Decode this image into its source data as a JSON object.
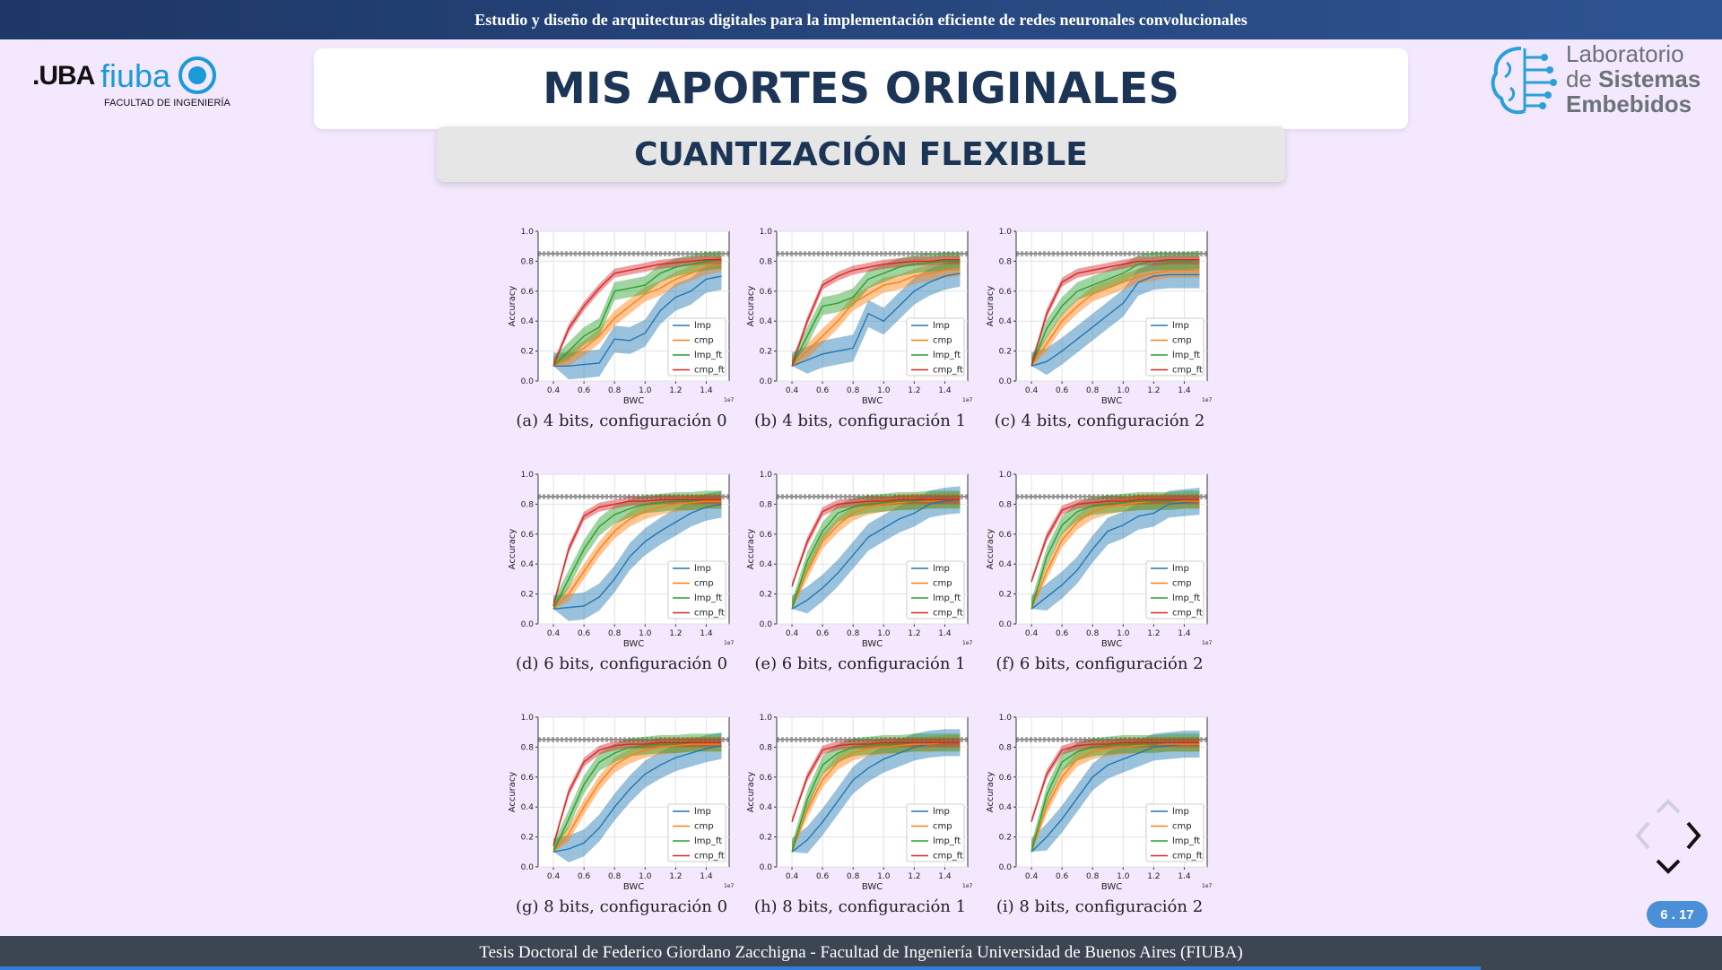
{
  "header": {
    "text": "Estudio y diseño de arquitecturas digitales para la implementación eficiente de redes neuronales convolucionales"
  },
  "footer": {
    "text": "Tesis Doctoral de Federico Giordano Zacchigna - Facultad de Ingeniería Universidad de Buenos Aires (FIUBA)"
  },
  "logo_left": {
    "uba": ".UBA",
    "fiuba": "fiuba",
    "faculty": "FACULTAD DE INGENIERÍA"
  },
  "logo_right": {
    "line1": "Laboratorio",
    "line2_prefix": "de ",
    "line2_bold": "Sistemas",
    "line3": "Embebidos"
  },
  "title": "MIS APORTES ORIGINALES",
  "subtitle": "CUANTIZACIÓN FLEXIBLE",
  "pagination": {
    "current": "6",
    "separator": ".",
    "sub": "17"
  },
  "progress_fraction": 0.86,
  "colors": {
    "lmp": "#1f77b4",
    "cmp": "#ff7f0e",
    "lmp_ft": "#2ca02c",
    "cmp_ft": "#d62728",
    "accent": "#2e5492"
  },
  "chart_data": [
    {
      "type": "line",
      "caption": "(a) 4 bits, configuración 0",
      "xlabel": "BWC",
      "ylabel": "Accuracy",
      "x_multiplier": "1e7",
      "xlim": [
        0.3,
        1.55
      ],
      "ylim": [
        0,
        1.0
      ],
      "x_ticks": [
        "0.4",
        "0.6",
        "0.8",
        "1.0",
        "1.2",
        "1.4"
      ],
      "y_ticks": [
        "0.0",
        "0.2",
        "0.4",
        "0.6",
        "0.8",
        "1.0"
      ],
      "reference_line": 0.85,
      "legend": [
        "lmp",
        "cmp",
        "lmp_ft",
        "cmp_ft"
      ],
      "legend_position": "lower-right",
      "x": [
        0.4,
        0.5,
        0.6,
        0.7,
        0.8,
        0.9,
        1.0,
        1.1,
        1.2,
        1.3,
        1.4,
        1.5
      ],
      "series": [
        {
          "name": "lmp",
          "values": [
            0.1,
            0.1,
            0.11,
            0.12,
            0.28,
            0.27,
            0.32,
            0.47,
            0.56,
            0.6,
            0.68,
            0.7
          ]
        },
        {
          "name": "cmp",
          "values": [
            0.1,
            0.15,
            0.22,
            0.3,
            0.42,
            0.5,
            0.58,
            0.62,
            0.68,
            0.72,
            0.76,
            0.78
          ]
        },
        {
          "name": "lmp_ft",
          "values": [
            0.1,
            0.2,
            0.3,
            0.36,
            0.6,
            0.62,
            0.64,
            0.72,
            0.76,
            0.78,
            0.8,
            0.81
          ]
        },
        {
          "name": "cmp_ft",
          "values": [
            0.1,
            0.35,
            0.5,
            0.62,
            0.72,
            0.74,
            0.76,
            0.78,
            0.79,
            0.8,
            0.81,
            0.81
          ]
        }
      ]
    },
    {
      "type": "line",
      "caption": "(b) 4 bits, configuración 1",
      "xlabel": "BWC",
      "ylabel": "Accuracy",
      "x_multiplier": "1e7",
      "xlim": [
        0.3,
        1.55
      ],
      "ylim": [
        0,
        1.0
      ],
      "x_ticks": [
        "0.4",
        "0.6",
        "0.8",
        "1.0",
        "1.2",
        "1.4"
      ],
      "y_ticks": [
        "0.0",
        "0.2",
        "0.4",
        "0.6",
        "0.8",
        "1.0"
      ],
      "reference_line": 0.85,
      "legend": [
        "lmp",
        "cmp",
        "lmp_ft",
        "cmp_ft"
      ],
      "legend_position": "lower-right",
      "x": [
        0.4,
        0.5,
        0.6,
        0.7,
        0.8,
        0.9,
        1.0,
        1.1,
        1.2,
        1.3,
        1.4,
        1.5
      ],
      "series": [
        {
          "name": "lmp",
          "values": [
            0.1,
            0.14,
            0.18,
            0.2,
            0.22,
            0.45,
            0.4,
            0.5,
            0.6,
            0.66,
            0.7,
            0.72
          ]
        },
        {
          "name": "cmp",
          "values": [
            0.1,
            0.2,
            0.3,
            0.4,
            0.52,
            0.58,
            0.64,
            0.66,
            0.7,
            0.72,
            0.74,
            0.75
          ]
        },
        {
          "name": "lmp_ft",
          "values": [
            0.1,
            0.3,
            0.5,
            0.52,
            0.56,
            0.68,
            0.72,
            0.76,
            0.78,
            0.79,
            0.8,
            0.8
          ]
        },
        {
          "name": "cmp_ft",
          "values": [
            0.1,
            0.4,
            0.64,
            0.7,
            0.74,
            0.76,
            0.78,
            0.79,
            0.8,
            0.8,
            0.81,
            0.81
          ]
        }
      ]
    },
    {
      "type": "line",
      "caption": "(c) 4 bits, configuración 2",
      "xlabel": "BWC",
      "ylabel": "Accuracy",
      "x_multiplier": "1e7",
      "xlim": [
        0.3,
        1.55
      ],
      "ylim": [
        0,
        1.0
      ],
      "x_ticks": [
        "0.4",
        "0.6",
        "0.8",
        "1.0",
        "1.2",
        "1.4"
      ],
      "y_ticks": [
        "0.0",
        "0.2",
        "0.4",
        "0.6",
        "0.8",
        "1.0"
      ],
      "reference_line": 0.85,
      "legend": [
        "lmp",
        "cmp",
        "lmp_ft",
        "cmp_ft"
      ],
      "legend_position": "lower-right",
      "x": [
        0.4,
        0.5,
        0.6,
        0.7,
        0.8,
        0.9,
        1.0,
        1.1,
        1.2,
        1.3,
        1.4,
        1.5
      ],
      "series": [
        {
          "name": "lmp",
          "values": [
            0.1,
            0.13,
            0.2,
            0.28,
            0.36,
            0.44,
            0.52,
            0.66,
            0.7,
            0.71,
            0.71,
            0.71
          ]
        },
        {
          "name": "cmp",
          "values": [
            0.1,
            0.25,
            0.4,
            0.5,
            0.58,
            0.62,
            0.66,
            0.7,
            0.72,
            0.74,
            0.74,
            0.74
          ]
        },
        {
          "name": "lmp_ft",
          "values": [
            0.1,
            0.35,
            0.5,
            0.6,
            0.64,
            0.68,
            0.72,
            0.78,
            0.8,
            0.8,
            0.8,
            0.81
          ]
        },
        {
          "name": "cmp_ft",
          "values": [
            0.1,
            0.45,
            0.66,
            0.72,
            0.74,
            0.76,
            0.78,
            0.8,
            0.8,
            0.81,
            0.81,
            0.81
          ]
        }
      ]
    },
    {
      "type": "line",
      "caption": "(d) 6 bits, configuración 0",
      "xlabel": "BWC",
      "ylabel": "Accuracy",
      "x_multiplier": "1e7",
      "xlim": [
        0.3,
        1.55
      ],
      "ylim": [
        0,
        1.0
      ],
      "x_ticks": [
        "0.4",
        "0.6",
        "0.8",
        "1.0",
        "1.2",
        "1.4"
      ],
      "y_ticks": [
        "0.0",
        "0.2",
        "0.4",
        "0.6",
        "0.8",
        "1.0"
      ],
      "reference_line": 0.85,
      "legend": [
        "lmp",
        "cmp",
        "lmp_ft",
        "cmp_ft"
      ],
      "legend_position": "lower-right",
      "x": [
        0.4,
        0.5,
        0.6,
        0.7,
        0.8,
        0.9,
        1.0,
        1.1,
        1.2,
        1.3,
        1.4,
        1.5
      ],
      "series": [
        {
          "name": "lmp",
          "values": [
            0.1,
            0.11,
            0.12,
            0.18,
            0.3,
            0.45,
            0.55,
            0.62,
            0.68,
            0.74,
            0.78,
            0.8
          ]
        },
        {
          "name": "cmp",
          "values": [
            0.1,
            0.2,
            0.35,
            0.5,
            0.62,
            0.7,
            0.75,
            0.78,
            0.8,
            0.81,
            0.82,
            0.82
          ]
        },
        {
          "name": "lmp_ft",
          "values": [
            0.1,
            0.3,
            0.5,
            0.65,
            0.73,
            0.77,
            0.8,
            0.81,
            0.82,
            0.82,
            0.83,
            0.83
          ]
        },
        {
          "name": "cmp_ft",
          "values": [
            0.12,
            0.5,
            0.72,
            0.78,
            0.8,
            0.82,
            0.82,
            0.83,
            0.83,
            0.83,
            0.83,
            0.83
          ]
        }
      ]
    },
    {
      "type": "line",
      "caption": "(e) 6 bits, configuración 1",
      "xlabel": "BWC",
      "ylabel": "Accuracy",
      "x_multiplier": "1e7",
      "xlim": [
        0.3,
        1.55
      ],
      "ylim": [
        0,
        1.0
      ],
      "x_ticks": [
        "0.4",
        "0.6",
        "0.8",
        "1.0",
        "1.2",
        "1.4"
      ],
      "y_ticks": [
        "0.0",
        "0.2",
        "0.4",
        "0.6",
        "0.8",
        "1.0"
      ],
      "reference_line": 0.85,
      "legend": [
        "lmp",
        "cmp",
        "lmp_ft",
        "cmp_ft"
      ],
      "legend_position": "lower-right",
      "x": [
        0.4,
        0.5,
        0.6,
        0.7,
        0.8,
        0.9,
        1.0,
        1.1,
        1.2,
        1.3,
        1.4,
        1.5
      ],
      "series": [
        {
          "name": "lmp",
          "values": [
            0.1,
            0.16,
            0.24,
            0.34,
            0.46,
            0.58,
            0.64,
            0.7,
            0.74,
            0.8,
            0.82,
            0.83
          ]
        },
        {
          "name": "cmp",
          "values": [
            0.1,
            0.35,
            0.55,
            0.66,
            0.74,
            0.78,
            0.8,
            0.81,
            0.82,
            0.82,
            0.83,
            0.83
          ]
        },
        {
          "name": "lmp_ft",
          "values": [
            0.1,
            0.42,
            0.62,
            0.74,
            0.78,
            0.8,
            0.81,
            0.82,
            0.82,
            0.83,
            0.83,
            0.83
          ]
        },
        {
          "name": "cmp_ft",
          "values": [
            0.25,
            0.55,
            0.75,
            0.8,
            0.81,
            0.82,
            0.82,
            0.83,
            0.83,
            0.83,
            0.83,
            0.83
          ]
        }
      ]
    },
    {
      "type": "line",
      "caption": "(f) 6 bits, configuración 2",
      "xlabel": "BWC",
      "ylabel": "Accuracy",
      "x_multiplier": "1e7",
      "xlim": [
        0.3,
        1.55
      ],
      "ylim": [
        0,
        1.0
      ],
      "x_ticks": [
        "0.4",
        "0.6",
        "0.8",
        "1.0",
        "1.2",
        "1.4"
      ],
      "y_ticks": [
        "0.0",
        "0.2",
        "0.4",
        "0.6",
        "0.8",
        "1.0"
      ],
      "reference_line": 0.85,
      "legend": [
        "lmp",
        "cmp",
        "lmp_ft",
        "cmp_ft"
      ],
      "legend_position": "lower-right",
      "x": [
        0.4,
        0.5,
        0.6,
        0.7,
        0.8,
        0.9,
        1.0,
        1.1,
        1.2,
        1.3,
        1.4,
        1.5
      ],
      "series": [
        {
          "name": "lmp",
          "values": [
            0.1,
            0.18,
            0.26,
            0.36,
            0.5,
            0.62,
            0.66,
            0.72,
            0.74,
            0.8,
            0.81,
            0.82
          ]
        },
        {
          "name": "cmp",
          "values": [
            0.1,
            0.35,
            0.56,
            0.68,
            0.75,
            0.78,
            0.8,
            0.81,
            0.82,
            0.82,
            0.82,
            0.82
          ]
        },
        {
          "name": "lmp_ft",
          "values": [
            0.1,
            0.45,
            0.66,
            0.75,
            0.79,
            0.8,
            0.81,
            0.82,
            0.82,
            0.82,
            0.83,
            0.83
          ]
        },
        {
          "name": "cmp_ft",
          "values": [
            0.28,
            0.58,
            0.76,
            0.8,
            0.81,
            0.82,
            0.82,
            0.83,
            0.83,
            0.83,
            0.83,
            0.83
          ]
        }
      ]
    },
    {
      "type": "line",
      "caption": "(g) 8 bits, configuración 0",
      "xlabel": "BWC",
      "ylabel": "Accuracy",
      "x_multiplier": "1e7",
      "xlim": [
        0.3,
        1.55
      ],
      "ylim": [
        0,
        1.0
      ],
      "x_ticks": [
        "0.4",
        "0.6",
        "0.8",
        "1.0",
        "1.2",
        "1.4"
      ],
      "y_ticks": [
        "0.0",
        "0.2",
        "0.4",
        "0.6",
        "0.8",
        "1.0"
      ],
      "reference_line": 0.85,
      "legend": [
        "lmp",
        "cmp",
        "lmp_ft",
        "cmp_ft"
      ],
      "legend_position": "lower-right",
      "x": [
        0.4,
        0.5,
        0.6,
        0.7,
        0.8,
        0.9,
        1.0,
        1.1,
        1.2,
        1.3,
        1.4,
        1.5
      ],
      "series": [
        {
          "name": "lmp",
          "values": [
            0.1,
            0.12,
            0.16,
            0.26,
            0.4,
            0.52,
            0.62,
            0.68,
            0.73,
            0.76,
            0.79,
            0.81
          ]
        },
        {
          "name": "cmp",
          "values": [
            0.1,
            0.22,
            0.4,
            0.56,
            0.68,
            0.74,
            0.78,
            0.8,
            0.81,
            0.82,
            0.82,
            0.82
          ]
        },
        {
          "name": "lmp_ft",
          "values": [
            0.1,
            0.32,
            0.55,
            0.7,
            0.76,
            0.8,
            0.81,
            0.82,
            0.82,
            0.83,
            0.83,
            0.83
          ]
        },
        {
          "name": "cmp_ft",
          "values": [
            0.14,
            0.5,
            0.7,
            0.78,
            0.81,
            0.82,
            0.82,
            0.83,
            0.83,
            0.83,
            0.83,
            0.83
          ]
        }
      ]
    },
    {
      "type": "line",
      "caption": "(h) 8 bits, configuración 1",
      "xlabel": "BWC",
      "ylabel": "Accuracy",
      "x_multiplier": "1e7",
      "xlim": [
        0.3,
        1.55
      ],
      "ylim": [
        0,
        1.0
      ],
      "x_ticks": [
        "0.4",
        "0.6",
        "0.8",
        "1.0",
        "1.2",
        "1.4"
      ],
      "y_ticks": [
        "0.0",
        "0.2",
        "0.4",
        "0.6",
        "0.8",
        "1.0"
      ],
      "reference_line": 0.85,
      "legend": [
        "lmp",
        "cmp",
        "lmp_ft",
        "cmp_ft"
      ],
      "legend_position": "lower-right",
      "x": [
        0.4,
        0.5,
        0.6,
        0.7,
        0.8,
        0.9,
        1.0,
        1.1,
        1.2,
        1.3,
        1.4,
        1.5
      ],
      "series": [
        {
          "name": "lmp",
          "values": [
            0.1,
            0.18,
            0.3,
            0.44,
            0.58,
            0.66,
            0.72,
            0.76,
            0.8,
            0.82,
            0.83,
            0.83
          ]
        },
        {
          "name": "cmp",
          "values": [
            0.1,
            0.38,
            0.58,
            0.7,
            0.76,
            0.79,
            0.8,
            0.81,
            0.82,
            0.82,
            0.83,
            0.83
          ]
        },
        {
          "name": "lmp_ft",
          "values": [
            0.1,
            0.45,
            0.68,
            0.76,
            0.8,
            0.81,
            0.82,
            0.82,
            0.83,
            0.83,
            0.83,
            0.83
          ]
        },
        {
          "name": "cmp_ft",
          "values": [
            0.3,
            0.6,
            0.78,
            0.81,
            0.82,
            0.82,
            0.83,
            0.83,
            0.83,
            0.83,
            0.83,
            0.83
          ]
        }
      ]
    },
    {
      "type": "line",
      "caption": "(i) 8 bits, configuración 2",
      "xlabel": "BWC",
      "ylabel": "Accuracy",
      "x_multiplier": "1e7",
      "xlim": [
        0.3,
        1.55
      ],
      "ylim": [
        0,
        1.0
      ],
      "x_ticks": [
        "0.4",
        "0.6",
        "0.8",
        "1.0",
        "1.2",
        "1.4"
      ],
      "y_ticks": [
        "0.0",
        "0.2",
        "0.4",
        "0.6",
        "0.8",
        "1.0"
      ],
      "reference_line": 0.85,
      "legend": [
        "lmp",
        "cmp",
        "lmp_ft",
        "cmp_ft"
      ],
      "legend_position": "lower-right",
      "x": [
        0.4,
        0.5,
        0.6,
        0.7,
        0.8,
        0.9,
        1.0,
        1.1,
        1.2,
        1.3,
        1.4,
        1.5
      ],
      "series": [
        {
          "name": "lmp",
          "values": [
            0.1,
            0.2,
            0.32,
            0.46,
            0.6,
            0.68,
            0.72,
            0.76,
            0.8,
            0.81,
            0.82,
            0.82
          ]
        },
        {
          "name": "cmp",
          "values": [
            0.1,
            0.4,
            0.6,
            0.72,
            0.77,
            0.79,
            0.8,
            0.81,
            0.82,
            0.82,
            0.82,
            0.82
          ]
        },
        {
          "name": "lmp_ft",
          "values": [
            0.1,
            0.48,
            0.7,
            0.77,
            0.8,
            0.81,
            0.82,
            0.82,
            0.82,
            0.83,
            0.83,
            0.83
          ]
        },
        {
          "name": "cmp_ft",
          "values": [
            0.3,
            0.62,
            0.78,
            0.81,
            0.82,
            0.82,
            0.83,
            0.83,
            0.83,
            0.83,
            0.83,
            0.83
          ]
        }
      ]
    }
  ]
}
